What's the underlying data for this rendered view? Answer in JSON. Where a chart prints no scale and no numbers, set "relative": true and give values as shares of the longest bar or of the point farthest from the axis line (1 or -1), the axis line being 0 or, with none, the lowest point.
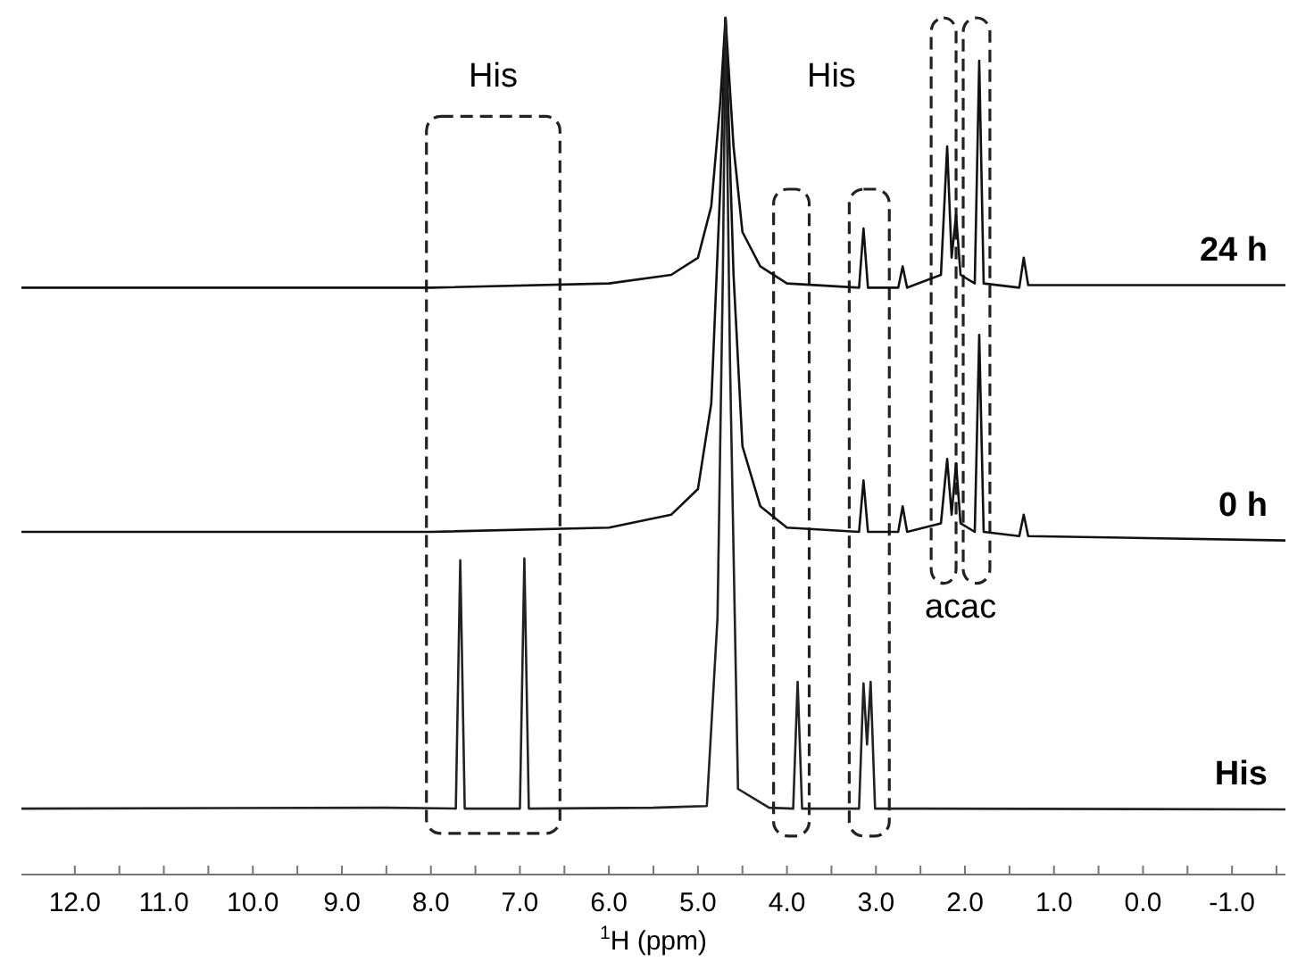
{
  "chart_data": {
    "type": "line",
    "relative": true,
    "xlabel": "$^{1}$H (ppm)",
    "xlim": [
      12.6,
      -1.6
    ],
    "xticks": [
      {
        "value": 12,
        "label": "12.0"
      },
      {
        "value": 11.5,
        "label": null
      },
      {
        "value": 11,
        "label": "11.0"
      },
      {
        "value": 10.5,
        "label": null
      },
      {
        "value": 10,
        "label": "10.0"
      },
      {
        "value": 9.5,
        "label": null
      },
      {
        "value": 9,
        "label": "9.0"
      },
      {
        "value": 8.5,
        "label": null
      },
      {
        "value": 8,
        "label": "8.0"
      },
      {
        "value": 7.5,
        "label": null
      },
      {
        "value": 7,
        "label": "7.0"
      },
      {
        "value": 6.5,
        "label": null
      },
      {
        "value": 6,
        "label": "6.0"
      },
      {
        "value": 5.5,
        "label": null
      },
      {
        "value": 5,
        "label": "5.0"
      },
      {
        "value": 4.5,
        "label": null
      },
      {
        "value": 4,
        "label": "4.0"
      },
      {
        "value": 3.5,
        "label": null
      },
      {
        "value": 3,
        "label": "3.0"
      },
      {
        "value": 2.5,
        "label": null
      },
      {
        "value": 2,
        "label": "2.0"
      },
      {
        "value": 1.5,
        "label": null
      },
      {
        "value": 1,
        "label": "1.0"
      },
      {
        "value": 0.5,
        "label": null
      },
      {
        "value": 0,
        "label": "0.0"
      },
      {
        "value": -0.5,
        "label": null
      },
      {
        "value": -1,
        "label": "-1.0"
      },
      {
        "value": -1.5,
        "label": null
      }
    ],
    "grid": false,
    "series": [
      {
        "name": "24 h",
        "color": "#111111",
        "x": [
          12.6,
          8,
          6,
          5.3,
          5.0,
          4.85,
          4.75,
          4.69,
          4.6,
          4.5,
          4.3,
          4.0,
          3.19,
          3.14,
          3.09,
          2.75,
          2.7,
          2.65,
          2.27,
          2.2,
          2.15,
          2.1,
          2.05,
          1.89,
          1.84,
          1.79,
          1.39,
          1.34,
          1.29,
          -1.6
        ],
        "values": [
          0.685,
          0.685,
          0.69,
          0.7,
          0.72,
          0.78,
          0.9,
          1.0,
          0.85,
          0.75,
          0.71,
          0.69,
          0.685,
          0.754,
          0.685,
          0.685,
          0.71,
          0.685,
          0.7,
          0.85,
          0.72,
          0.77,
          0.7,
          0.69,
          0.95,
          0.69,
          0.685,
          0.72,
          0.688,
          0.688
        ]
      },
      {
        "name": "0 h",
        "color": "#111111",
        "x": [
          12.6,
          8,
          6,
          5.3,
          5.0,
          4.85,
          4.75,
          4.69,
          4.6,
          4.5,
          4.3,
          4.0,
          3.19,
          3.14,
          3.09,
          2.75,
          2.7,
          2.65,
          2.27,
          2.2,
          2.15,
          2.1,
          2.05,
          1.89,
          1.84,
          1.79,
          1.39,
          1.34,
          1.29,
          -1.6
        ],
        "values": [
          0.4,
          0.4,
          0.405,
          0.42,
          0.45,
          0.55,
          0.8,
          1.0,
          0.7,
          0.5,
          0.43,
          0.405,
          0.4,
          0.46,
          0.4,
          0.4,
          0.43,
          0.4,
          0.41,
          0.485,
          0.42,
          0.48,
          0.41,
          0.4,
          0.63,
          0.4,
          0.395,
          0.42,
          0.395,
          0.39
        ]
      },
      {
        "name": "His",
        "color": "#222222",
        "x": [
          12.6,
          8.5,
          7.72,
          7.67,
          7.62,
          7.0,
          6.95,
          6.9,
          5.5,
          4.9,
          4.78,
          4.72,
          4.69,
          4.64,
          4.55,
          4.2,
          3.93,
          3.88,
          3.83,
          3.19,
          3.14,
          3.1,
          3.06,
          3.01,
          2.5,
          -1.6
        ],
        "values": [
          0.077,
          0.078,
          0.077,
          0.367,
          0.077,
          0.077,
          0.369,
          0.077,
          0.078,
          0.08,
          0.3,
          0.7,
          1.0,
          0.6,
          0.1,
          0.078,
          0.077,
          0.225,
          0.077,
          0.077,
          0.223,
          0.152,
          0.225,
          0.077,
          0.077,
          0.076
        ]
      }
    ],
    "annotations": [
      "His",
      "His",
      "acac"
    ]
  }
}
